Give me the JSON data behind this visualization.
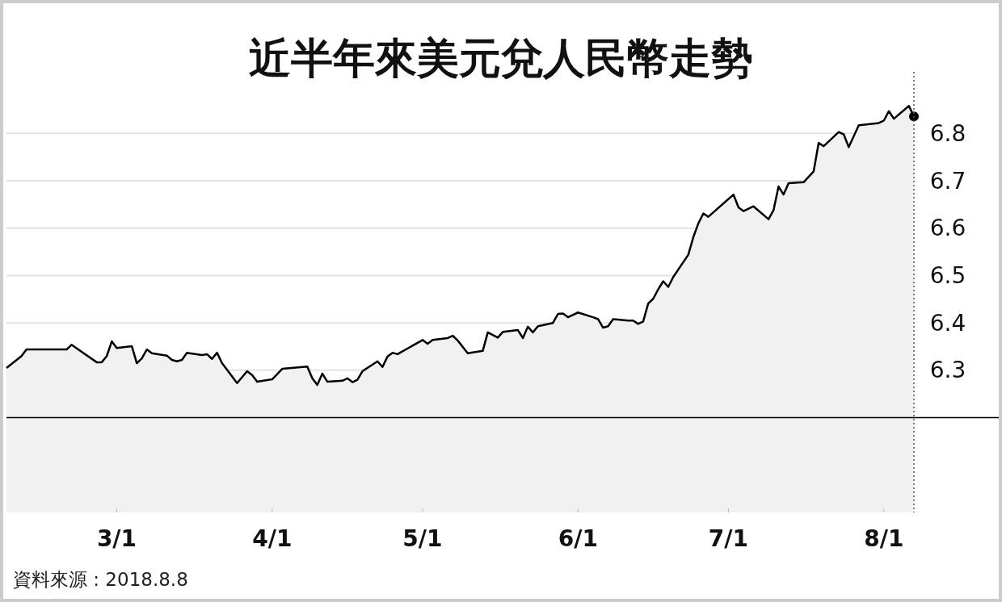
{
  "chart_data": {
    "type": "area",
    "title": "近半年來美元兌人民幣走勢",
    "annotations": [
      "資料來源 : 2018.8.8"
    ],
    "x": [
      "2018-02-07",
      "2018-02-10",
      "2018-02-11",
      "2018-02-19",
      "2018-02-20",
      "2018-02-22",
      "2018-02-25",
      "2018-02-26",
      "2018-02-27",
      "2018-02-28",
      "2018-03-01",
      "2018-03-04",
      "2018-03-05",
      "2018-03-06",
      "2018-03-07",
      "2018-03-08",
      "2018-03-11",
      "2018-03-12",
      "2018-03-13",
      "2018-03-14",
      "2018-03-15",
      "2018-03-18",
      "2018-03-19",
      "2018-03-20",
      "2018-03-21",
      "2018-03-22",
      "2018-03-25",
      "2018-03-27",
      "2018-03-28",
      "2018-03-29",
      "2018-04-01",
      "2018-04-03",
      "2018-04-08",
      "2018-04-09",
      "2018-04-10",
      "2018-04-11",
      "2018-04-12",
      "2018-04-15",
      "2018-04-16",
      "2018-04-17",
      "2018-04-18",
      "2018-04-19",
      "2018-04-22",
      "2018-04-23",
      "2018-04-24",
      "2018-04-25",
      "2018-04-26",
      "2018-05-01",
      "2018-05-02",
      "2018-05-03",
      "2018-05-06",
      "2018-05-07",
      "2018-05-08",
      "2018-05-10",
      "2018-05-13",
      "2018-05-14",
      "2018-05-16",
      "2018-05-17",
      "2018-05-20",
      "2018-05-21",
      "2018-05-22",
      "2018-05-23",
      "2018-05-24",
      "2018-05-27",
      "2018-05-28",
      "2018-05-29",
      "2018-05-30",
      "2018-06-01",
      "2018-06-04",
      "2018-06-05",
      "2018-06-06",
      "2018-06-07",
      "2018-06-08",
      "2018-06-11",
      "2018-06-12",
      "2018-06-13",
      "2018-06-14",
      "2018-06-15",
      "2018-06-16",
      "2018-06-17",
      "2018-06-18",
      "2018-06-19",
      "2018-06-20",
      "2018-06-23",
      "2018-06-24",
      "2018-06-25",
      "2018-06-26",
      "2018-06-27",
      "2018-07-02",
      "2018-07-03",
      "2018-07-04",
      "2018-07-06",
      "2018-07-09",
      "2018-07-10",
      "2018-07-11",
      "2018-07-12",
      "2018-07-13",
      "2018-07-16",
      "2018-07-18",
      "2018-07-19",
      "2018-07-20",
      "2018-07-23",
      "2018-07-24",
      "2018-07-25",
      "2018-07-27",
      "2018-07-31",
      "2018-08-01",
      "2018-08-02",
      "2018-08-03",
      "2018-08-06",
      "2018-08-07"
    ],
    "series": [
      {
        "color": "#000000",
        "values": [
          6.305,
          6.33,
          6.344,
          6.344,
          6.354,
          6.339,
          6.317,
          6.317,
          6.33,
          6.361,
          6.347,
          6.351,
          6.315,
          6.325,
          6.344,
          6.336,
          6.331,
          6.322,
          6.319,
          6.322,
          6.337,
          6.332,
          6.334,
          6.324,
          6.337,
          6.315,
          6.273,
          6.298,
          6.29,
          6.276,
          6.281,
          6.303,
          6.308,
          6.283,
          6.269,
          6.293,
          6.276,
          6.278,
          6.283,
          6.275,
          6.28,
          6.298,
          6.319,
          6.307,
          6.329,
          6.337,
          6.334,
          6.364,
          6.356,
          6.364,
          6.368,
          6.373,
          6.363,
          6.336,
          6.341,
          6.38,
          6.369,
          6.381,
          6.385,
          6.368,
          6.392,
          6.38,
          6.393,
          6.4,
          6.419,
          6.42,
          6.412,
          6.422,
          6.412,
          6.408,
          6.39,
          6.393,
          6.408,
          6.405,
          6.405,
          6.398,
          6.403,
          6.441,
          6.451,
          6.471,
          6.488,
          6.476,
          6.497,
          6.544,
          6.581,
          6.61,
          6.631,
          6.624,
          6.671,
          6.644,
          6.636,
          6.646,
          6.619,
          6.638,
          6.688,
          6.671,
          6.695,
          6.697,
          6.72,
          6.78,
          6.773,
          6.803,
          6.798,
          6.771,
          6.817,
          6.822,
          6.827,
          6.847,
          6.831,
          6.858,
          6.836
        ]
      },
      {
        "type": "scatter",
        "color": "#000000",
        "marker": "circle",
        "x": [
          "2018-08-07"
        ],
        "values": [
          6.836
        ]
      }
    ],
    "xlim": [
      "2018-02-07",
      "2018-08-07"
    ],
    "ylim": [
      6.0,
      6.93
    ],
    "xticks": [
      {
        "value": "2018-03-01",
        "label": "3/1"
      },
      {
        "value": "2018-04-01",
        "label": "4/1"
      },
      {
        "value": "2018-05-01",
        "label": "5/1"
      },
      {
        "value": "2018-06-01",
        "label": "6/1"
      },
      {
        "value": "2018-07-01",
        "label": "7/1"
      },
      {
        "value": "2018-08-01",
        "label": "8/1"
      }
    ],
    "yticks": [
      6.3,
      6.4,
      6.5,
      6.6,
      6.7,
      6.8
    ],
    "grid": "y",
    "ref_lines": [
      {
        "axis": "y",
        "value": 6.2,
        "color": "#000000",
        "line_style": "solid"
      },
      {
        "axis": "x",
        "value": "2018-08-07",
        "color": "#555555",
        "line_style": "dotted"
      }
    ]
  }
}
